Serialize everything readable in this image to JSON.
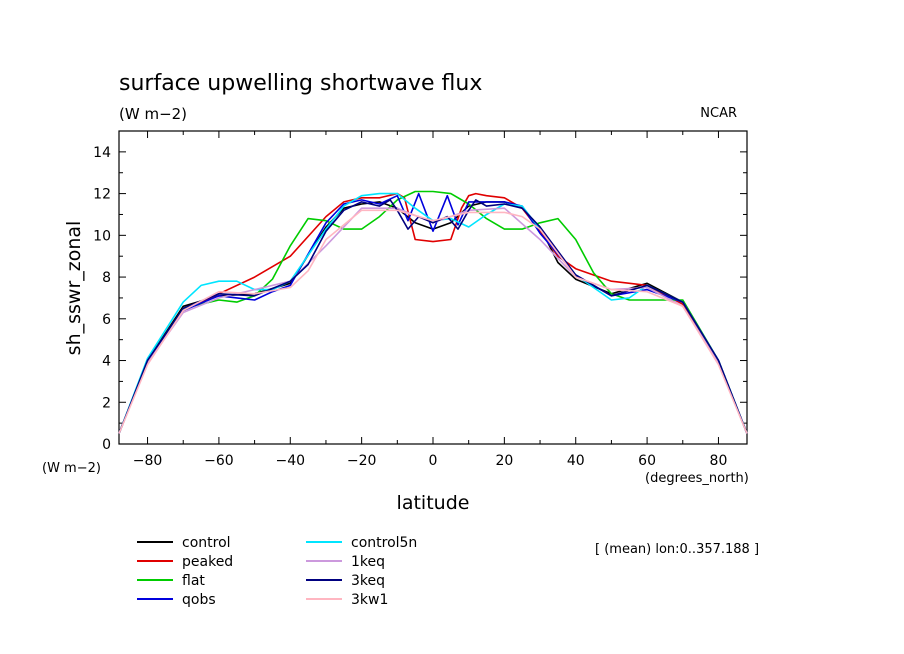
{
  "chart_data": {
    "type": "line",
    "title": "surface upwelling shortwave flux",
    "units": "(W m−2)",
    "corner_label": "NCAR",
    "ylabel": "sh_sswr_zonal",
    "y_units_label": "(W m−2)",
    "xlabel": "latitude",
    "x_units_label": "(degrees_north)",
    "annotation": "[ (mean) lon:0..357.188 ]",
    "xlim": [
      -88,
      88
    ],
    "ylim": [
      0,
      15
    ],
    "xticks": [
      -80,
      -60,
      -40,
      -20,
      0,
      20,
      40,
      60,
      80
    ],
    "xtick_labels": [
      "−80",
      "−60",
      "−40",
      "−20",
      "0",
      "20",
      "40",
      "60",
      "80"
    ],
    "yticks": [
      0,
      2,
      4,
      6,
      8,
      10,
      12,
      14
    ],
    "ytick_labels": [
      "0",
      "2",
      "4",
      "6",
      "8",
      "10",
      "12",
      "14"
    ],
    "grid": false,
    "legend_position": "bottom-left",
    "series": [
      {
        "name": "control",
        "color": "#000000",
        "x": [
          -88,
          -80,
          -70,
          -60,
          -50,
          -40,
          -30,
          -25,
          -20,
          -15,
          -10,
          -5,
          0,
          5,
          10,
          15,
          20,
          25,
          30,
          35,
          40,
          50,
          60,
          70,
          80,
          88
        ],
        "y": [
          0.5,
          4.0,
          6.6,
          7.1,
          7.2,
          7.7,
          10.4,
          11.3,
          11.5,
          11.6,
          11.3,
          10.6,
          10.3,
          10.6,
          11.4,
          11.6,
          11.6,
          11.3,
          10.4,
          8.7,
          7.9,
          7.2,
          7.7,
          6.8,
          4.0,
          0.5
        ]
      },
      {
        "name": "peaked",
        "color": "#e00000",
        "x": [
          -88,
          -80,
          -70,
          -60,
          -50,
          -40,
          -30,
          -25,
          -20,
          -15,
          -10,
          -8,
          -5,
          0,
          5,
          8,
          10,
          12,
          15,
          20,
          25,
          30,
          35,
          40,
          50,
          60,
          70,
          80,
          88
        ],
        "y": [
          0.5,
          4.0,
          6.4,
          7.2,
          8.0,
          9.0,
          10.9,
          11.6,
          11.8,
          11.8,
          12.0,
          11.8,
          9.8,
          9.7,
          9.8,
          11.3,
          11.9,
          12.0,
          11.9,
          11.8,
          11.3,
          10.2,
          9.0,
          8.4,
          7.8,
          7.6,
          6.7,
          4.0,
          0.5
        ]
      },
      {
        "name": "flat",
        "color": "#00cc00",
        "x": [
          -88,
          -80,
          -70,
          -60,
          -55,
          -50,
          -45,
          -40,
          -35,
          -30,
          -25,
          -20,
          -15,
          -10,
          -5,
          0,
          5,
          10,
          15,
          20,
          25,
          30,
          35,
          40,
          45,
          50,
          55,
          60,
          70,
          80,
          88
        ],
        "y": [
          0.5,
          4.0,
          6.5,
          6.9,
          6.8,
          7.1,
          7.9,
          9.5,
          10.8,
          10.7,
          10.3,
          10.3,
          10.9,
          11.7,
          12.1,
          12.1,
          12.0,
          11.5,
          10.8,
          10.3,
          10.3,
          10.6,
          10.8,
          9.8,
          8.2,
          7.2,
          6.9,
          6.9,
          6.9,
          4.0,
          0.5
        ]
      },
      {
        "name": "qobs",
        "color": "#0000dd",
        "x": [
          -88,
          -80,
          -70,
          -60,
          -55,
          -50,
          -45,
          -40,
          -30,
          -25,
          -20,
          -15,
          -10,
          -7,
          -4,
          0,
          4,
          7,
          10,
          15,
          20,
          25,
          30,
          40,
          50,
          60,
          70,
          80,
          88
        ],
        "y": [
          0.5,
          4.0,
          6.4,
          7.1,
          7.0,
          6.9,
          7.3,
          7.6,
          10.6,
          11.5,
          11.7,
          11.5,
          11.9,
          10.7,
          12.0,
          10.2,
          11.9,
          10.5,
          11.6,
          11.6,
          11.6,
          11.4,
          10.1,
          8.1,
          7.1,
          7.4,
          6.8,
          4.0,
          0.5
        ]
      },
      {
        "name": "control5n",
        "color": "#00e5ff",
        "x": [
          -88,
          -80,
          -70,
          -65,
          -60,
          -55,
          -50,
          -45,
          -40,
          -30,
          -25,
          -20,
          -15,
          -10,
          -5,
          0,
          5,
          10,
          15,
          20,
          25,
          30,
          40,
          50,
          55,
          60,
          70,
          80,
          88
        ],
        "y": [
          0.5,
          4.1,
          6.8,
          7.6,
          7.8,
          7.8,
          7.4,
          7.4,
          7.8,
          10.3,
          11.4,
          11.9,
          12.0,
          12.0,
          11.3,
          10.7,
          10.8,
          10.4,
          11.0,
          11.5,
          11.4,
          10.3,
          8.1,
          6.9,
          7.0,
          7.6,
          6.8,
          4.0,
          0.5
        ]
      },
      {
        "name": "1keq",
        "color": "#cc99dd",
        "x": [
          -88,
          -80,
          -70,
          -60,
          -50,
          -40,
          -30,
          -20,
          -10,
          0,
          10,
          20,
          30,
          40,
          50,
          60,
          70,
          80,
          88
        ],
        "y": [
          0.5,
          3.9,
          6.3,
          7.0,
          7.4,
          7.8,
          9.5,
          11.3,
          11.3,
          10.6,
          11.2,
          11.3,
          9.8,
          8.0,
          7.4,
          7.5,
          6.6,
          3.9,
          0.5
        ]
      },
      {
        "name": "3keq",
        "color": "#000080",
        "x": [
          -88,
          -80,
          -70,
          -60,
          -50,
          -40,
          -35,
          -30,
          -25,
          -20,
          -15,
          -12,
          -10,
          -7,
          -4,
          0,
          4,
          7,
          10,
          12,
          15,
          20,
          25,
          30,
          40,
          50,
          60,
          70,
          80,
          88
        ],
        "y": [
          0.5,
          4.0,
          6.5,
          7.2,
          7.1,
          7.8,
          8.6,
          10.2,
          11.2,
          11.6,
          11.4,
          11.7,
          11.2,
          10.3,
          10.9,
          10.6,
          10.9,
          10.3,
          11.2,
          11.7,
          11.4,
          11.5,
          11.3,
          10.4,
          8.1,
          7.1,
          7.6,
          6.8,
          4.0,
          0.5
        ]
      },
      {
        "name": "3kw1",
        "color": "#ffb6c1",
        "x": [
          -88,
          -80,
          -70,
          -60,
          -50,
          -40,
          -35,
          -30,
          -20,
          -10,
          0,
          10,
          20,
          25,
          30,
          40,
          50,
          60,
          70,
          80,
          88
        ],
        "y": [
          0.5,
          3.8,
          6.4,
          7.3,
          7.2,
          7.5,
          8.3,
          9.8,
          11.2,
          11.2,
          10.7,
          11.1,
          11.1,
          10.9,
          10.3,
          8.0,
          7.4,
          7.3,
          6.6,
          3.8,
          0.5
        ]
      }
    ]
  }
}
